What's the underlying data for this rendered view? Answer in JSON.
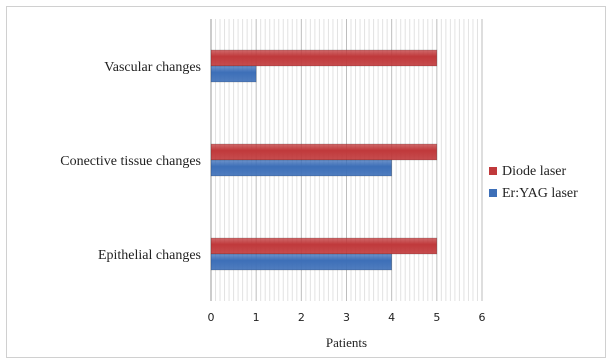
{
  "chart_data": {
    "type": "bar",
    "orientation": "horizontal",
    "categories": [
      "Vascular changes",
      "Conective tissue changes",
      "Epithelial changes"
    ],
    "series": [
      {
        "name": "Diode laser",
        "values": [
          5,
          5,
          5
        ],
        "color": "#c0393b"
      },
      {
        "name": "Er:YAG laser",
        "values": [
          1,
          4,
          4
        ],
        "color": "#3d6fb8"
      }
    ],
    "xlabel": "Patients",
    "xlim": [
      0,
      6
    ],
    "xticks": [
      0,
      1,
      2,
      3,
      4,
      5,
      6
    ],
    "grid": true,
    "legend": "right"
  }
}
